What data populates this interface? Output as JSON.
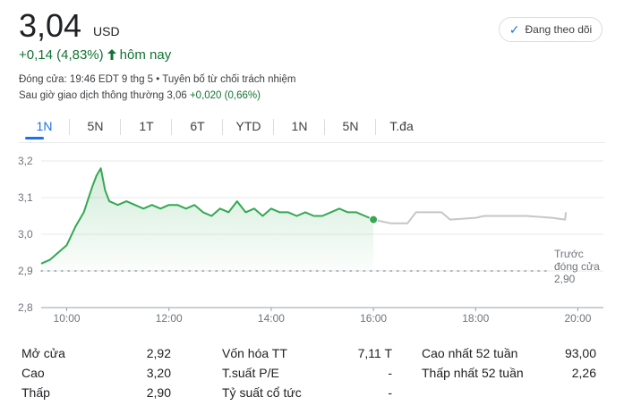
{
  "quote": {
    "price": "3,04",
    "currency": "USD",
    "change": "+0,14 (4,83%)",
    "change_arrow": "🡑",
    "period_label": "hôm nay",
    "follow_label": "Đang theo dõi",
    "status_line": "Đóng cửa: 19:46 EDT 9 thg 5 • Tuyên bố từ chối trách nhiệm",
    "after_hours_prefix": "Sau giờ giao dịch thông thường 3,06",
    "after_hours_change": "+0,020 (0,66%)"
  },
  "tabs": [
    {
      "label": "1N",
      "active": true
    },
    {
      "label": "5N",
      "active": false
    },
    {
      "label": "1T",
      "active": false
    },
    {
      "label": "6T",
      "active": false
    },
    {
      "label": "YTD",
      "active": false
    },
    {
      "label": "1N",
      "active": false
    },
    {
      "label": "5N",
      "active": false
    },
    {
      "label": "T.đa",
      "active": false
    }
  ],
  "chart_data": {
    "type": "line",
    "title": "",
    "ylim": [
      2.8,
      3.2
    ],
    "y_ticks": [
      "3,2",
      "3,1",
      "3,0",
      "2,9",
      "2,8"
    ],
    "x_ticks": [
      "10:00",
      "12:00",
      "14:00",
      "16:00",
      "18:00",
      "20:00"
    ],
    "previous_close": {
      "value": 2.9,
      "label_line1": "Trước",
      "label_line2": "đóng cửa",
      "label_value": "2,90"
    },
    "series": [
      {
        "style": "regular-session",
        "color": "#34a853",
        "x": [
          "09:30",
          "09:40",
          "09:50",
          "10:00",
          "10:10",
          "10:20",
          "10:30",
          "10:35",
          "10:40",
          "10:45",
          "10:50",
          "11:00",
          "11:10",
          "11:20",
          "11:30",
          "11:40",
          "11:50",
          "12:00",
          "12:10",
          "12:20",
          "12:30",
          "12:40",
          "12:50",
          "13:00",
          "13:10",
          "13:20",
          "13:30",
          "13:40",
          "13:50",
          "14:00",
          "14:10",
          "14:20",
          "14:30",
          "14:40",
          "14:50",
          "15:00",
          "15:10",
          "15:20",
          "15:30",
          "15:40",
          "15:50",
          "16:00"
        ],
        "y": [
          2.92,
          2.93,
          2.95,
          2.97,
          3.02,
          3.06,
          3.13,
          3.16,
          3.18,
          3.12,
          3.09,
          3.08,
          3.09,
          3.08,
          3.07,
          3.08,
          3.07,
          3.08,
          3.08,
          3.07,
          3.08,
          3.06,
          3.05,
          3.07,
          3.06,
          3.09,
          3.06,
          3.07,
          3.05,
          3.07,
          3.06,
          3.06,
          3.05,
          3.06,
          3.05,
          3.05,
          3.06,
          3.07,
          3.06,
          3.06,
          3.05,
          3.04
        ]
      },
      {
        "style": "after-hours",
        "color": "#c6c6c6",
        "x": [
          "16:00",
          "16:20",
          "16:40",
          "16:50",
          "17:00",
          "17:10",
          "17:20",
          "17:30",
          "18:00",
          "18:10",
          "18:30",
          "19:00",
          "19:30",
          "19:45",
          "19:46"
        ],
        "y": [
          3.04,
          3.03,
          3.03,
          3.06,
          3.06,
          3.06,
          3.06,
          3.04,
          3.045,
          3.05,
          3.05,
          3.05,
          3.045,
          3.04,
          3.06
        ]
      }
    ],
    "last_point": {
      "x": "16:00",
      "y": 3.04
    }
  },
  "stats": [
    {
      "label": "Mở cửa",
      "value": "2,92"
    },
    {
      "label": "Cao",
      "value": "3,20"
    },
    {
      "label": "Thấp",
      "value": "2,90"
    },
    {
      "label": "Vốn hóa TT",
      "value": "7,11 T"
    },
    {
      "label": "T.suất P/E",
      "value": "-"
    },
    {
      "label": "Tỷ suất cổ tức",
      "value": "-"
    },
    {
      "label": "Cao nhất 52 tuần",
      "value": "93,00"
    },
    {
      "label": "Thấp nhất 52 tuần",
      "value": "2,26"
    }
  ],
  "colors": {
    "up": "#137333",
    "accent": "#1a73e8",
    "line": "#34a853",
    "after_hours": "#c6c6c6"
  }
}
